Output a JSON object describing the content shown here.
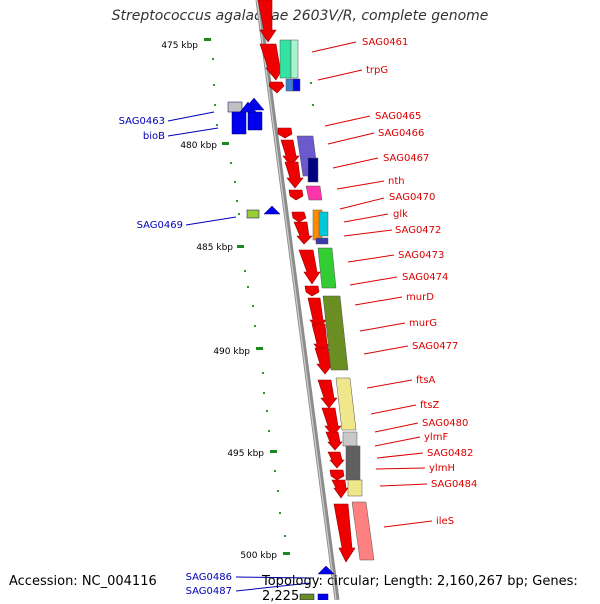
{
  "title": "Streptococcus agalactiae 2603V/R, complete genome",
  "accession": "Accession: NC_004116",
  "summary": "Topology: circular; Length: 2,160,267 bp; Genes: 2,225",
  "scale_labels": [
    "475 kbp",
    "480 kbp",
    "485 kbp",
    "490 kbp",
    "495 kbp",
    "500 kbp"
  ],
  "colors": {
    "forward_label": "#dd0000",
    "reverse_label": "#0000bb",
    "backbone": "#909090",
    "tick": "#1a8a1a",
    "gene_red": "#ee0000",
    "gene_blue": "#0000ee"
  },
  "forward_labels": [
    "SAG0461",
    "trpG",
    "SAG0465",
    "SAG0466",
    "SAG0467",
    "nth",
    "SAG0470",
    "glk",
    "SAG0472",
    "SAG0473",
    "SAG0474",
    "murD",
    "murG",
    "SAG0477",
    "ftsA",
    "ftsZ",
    "SAG0480",
    "ylmF",
    "SAG0482",
    "ylmH",
    "SAG0484",
    "ileS"
  ],
  "reverse_labels": [
    "SAG0463",
    "bioB",
    "SAG0469",
    "SAG0486",
    "SAG0487"
  ]
}
